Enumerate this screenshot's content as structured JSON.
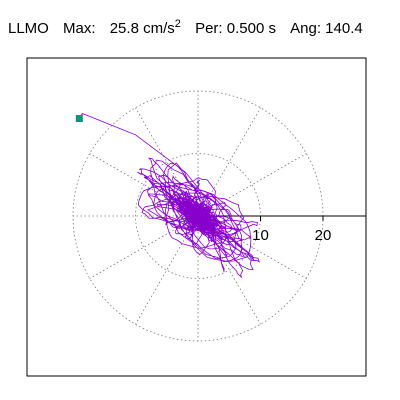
{
  "header": {
    "station": "LLMO",
    "max_label": "Max:",
    "max_value": "25.8",
    "max_unit": "cm/s",
    "max_exp": "2",
    "per_label": "Per:",
    "per_value": "0.500 s",
    "ang_label": "Ang:",
    "ang_value": "140.4"
  },
  "chart_data": {
    "type": "line",
    "title": "",
    "xlabel": "",
    "ylabel": "",
    "r_ticks": [
      10,
      20
    ],
    "r_tick_labels": [
      "10",
      "20"
    ],
    "rings": [
      10,
      20
    ],
    "spokes_deg": [
      0,
      30,
      60,
      90,
      120,
      150,
      180,
      210,
      240,
      270,
      300,
      330
    ],
    "axis_range": [
      -25.8,
      25.8
    ],
    "grid": true,
    "series_color": "#8800cc",
    "marker_color": "#009977",
    "start_point": [
      -19.0,
      15.6
    ],
    "orientation_deg": 140.4
  }
}
